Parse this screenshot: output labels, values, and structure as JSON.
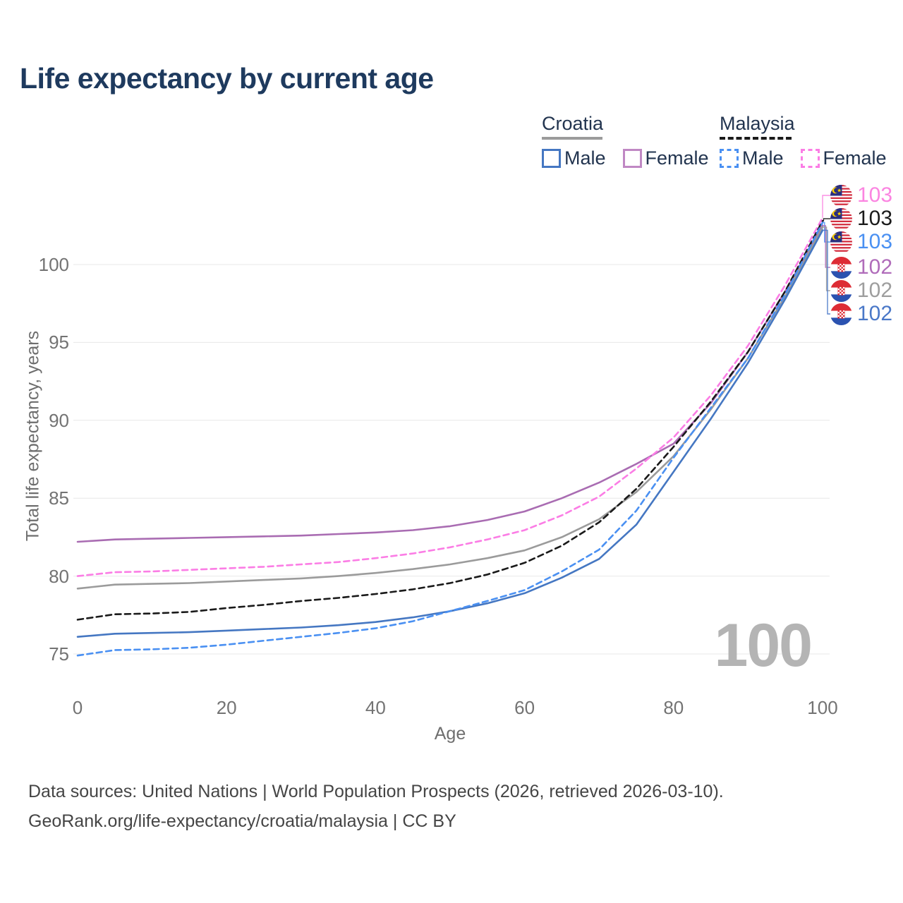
{
  "title": {
    "text": "Life expectancy by current age"
  },
  "legend": {
    "croatia": {
      "label": "Croatia",
      "line_color": "#9b9b9b",
      "line_style": "solid",
      "male": {
        "label": "Male",
        "color": "#4577c2"
      },
      "female": {
        "label": "Female",
        "color": "#c088c4"
      }
    },
    "malaysia": {
      "label": "Malaysia",
      "line_color": "#1a1a1a",
      "line_style": "dashed",
      "male": {
        "label": "Male",
        "color": "#4a90f2"
      },
      "female": {
        "label": "Female",
        "color": "#fb7de5"
      }
    }
  },
  "chart_data": {
    "type": "line",
    "title": "Life expectancy by current age",
    "xlabel": "Age",
    "ylabel": "Total life expectancy, years",
    "xlim": [
      0,
      100
    ],
    "ylim": [
      73.5,
      104.5
    ],
    "xticks": [
      0,
      20,
      40,
      60,
      80,
      100
    ],
    "yticks": [
      75,
      80,
      85,
      90,
      95,
      100
    ],
    "grid": "horizontal-only",
    "gridline_color": "#e8e8e8",
    "legend_position": "top-right",
    "watermark": "100",
    "x": [
      0,
      5,
      10,
      15,
      20,
      25,
      30,
      35,
      40,
      45,
      50,
      55,
      60,
      65,
      70,
      75,
      80,
      85,
      90,
      95,
      100
    ],
    "series": [
      {
        "name": "Croatia Female",
        "country": "Croatia",
        "sex": "Female",
        "color": "#a96cb2",
        "dashed": false,
        "end_label": "102",
        "values": [
          82.2,
          82.35,
          82.4,
          82.45,
          82.5,
          82.55,
          82.6,
          82.7,
          82.8,
          82.95,
          83.2,
          83.6,
          84.15,
          85.0,
          86.0,
          87.2,
          88.5,
          91.1,
          94.4,
          98.3,
          102.5
        ]
      },
      {
        "name": "Croatia Both sexes",
        "country": "Croatia",
        "sex": "Both",
        "color": "#9b9b9b",
        "dashed": false,
        "end_label": "102",
        "values": [
          79.2,
          79.45,
          79.5,
          79.55,
          79.65,
          79.75,
          79.85,
          80.0,
          80.2,
          80.45,
          80.75,
          81.15,
          81.65,
          82.5,
          83.65,
          85.4,
          87.7,
          90.7,
          94.0,
          98.0,
          102.4
        ]
      },
      {
        "name": "Croatia Male",
        "country": "Croatia",
        "sex": "Male",
        "color": "#4577c2",
        "dashed": false,
        "end_label": "102",
        "values": [
          76.1,
          76.3,
          76.35,
          76.4,
          76.5,
          76.6,
          76.7,
          76.85,
          77.05,
          77.35,
          77.75,
          78.25,
          78.9,
          79.9,
          81.1,
          83.3,
          86.7,
          90.1,
          93.7,
          97.8,
          102.2
        ]
      },
      {
        "name": "Malaysia Female",
        "country": "Malaysia",
        "sex": "Female",
        "color": "#fb7de5",
        "dashed": true,
        "end_label": "103",
        "values": [
          80.0,
          80.25,
          80.3,
          80.4,
          80.5,
          80.6,
          80.75,
          80.9,
          81.15,
          81.45,
          81.85,
          82.35,
          82.95,
          83.9,
          85.1,
          86.9,
          88.9,
          91.6,
          94.8,
          98.7,
          103.0
        ]
      },
      {
        "name": "Malaysia Both sexes",
        "country": "Malaysia",
        "sex": "Both",
        "color": "#1a1a1a",
        "dashed": true,
        "end_label": "103",
        "values": [
          77.2,
          77.55,
          77.6,
          77.7,
          77.95,
          78.15,
          78.4,
          78.6,
          78.85,
          79.15,
          79.55,
          80.1,
          80.85,
          81.95,
          83.45,
          85.6,
          88.3,
          91.2,
          94.4,
          98.3,
          102.8
        ]
      },
      {
        "name": "Malaysia Male",
        "country": "Malaysia",
        "sex": "Male",
        "color": "#4a90f2",
        "dashed": true,
        "end_label": "103",
        "values": [
          74.9,
          75.25,
          75.3,
          75.4,
          75.6,
          75.85,
          76.1,
          76.35,
          76.65,
          77.1,
          77.75,
          78.4,
          79.1,
          80.3,
          81.7,
          84.2,
          87.6,
          90.8,
          94.0,
          98.1,
          102.7
        ]
      }
    ],
    "end_label_rows": [
      {
        "series": "Malaysia Female",
        "flag": "malaysia",
        "label": "103",
        "color": "#fb85e1"
      },
      {
        "series": "Malaysia Both sexes",
        "flag": "malaysia",
        "label": "103",
        "color": "#1a1a1a"
      },
      {
        "series": "Malaysia Male",
        "flag": "malaysia",
        "label": "103",
        "color": "#4a90f2"
      },
      {
        "series": "Croatia Female",
        "flag": "croatia",
        "label": "102",
        "color": "#b06cba"
      },
      {
        "series": "Croatia Both sexes",
        "flag": "croatia",
        "label": "102",
        "color": "#9e9e9e"
      },
      {
        "series": "Croatia Male",
        "flag": "croatia",
        "label": "102",
        "color": "#4a78c8"
      }
    ]
  },
  "footer": {
    "line1": "Data sources: United Nations | World Population Prospects (2026, retrieved 2026-03-10).",
    "line2": "GeoRank.org/life-expectancy/croatia/malaysia | CC BY"
  }
}
